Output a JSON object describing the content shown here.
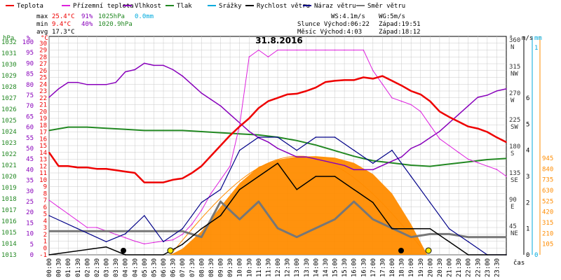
{
  "chart_data": {
    "type": "line",
    "title": "31.8.2016",
    "colors": {
      "temperature": "#ee0000",
      "dew_point": "#dd22dd",
      "humidity": "#8800bb",
      "pressure": "#228822",
      "precip": "#00aadd",
      "wind_speed": "#000000",
      "wind_gust": "#000088",
      "wind_dir": "#777777",
      "solar": "#ff8c00",
      "grid": "#c8c8c8"
    },
    "legend": [
      {
        "key": "temperature",
        "label": "Teplota"
      },
      {
        "key": "dew_point",
        "label": "Přízemní teplota"
      },
      {
        "key": "humidity",
        "label": "Vlhkost"
      },
      {
        "key": "pressure",
        "label": "Tlak"
      },
      {
        "key": "precip",
        "label": "Srážky"
      },
      {
        "key": "wind_speed",
        "label": "Rychlost větru"
      },
      {
        "key": "wind_gust",
        "label": "Náraz větru"
      },
      {
        "key": "wind_dir",
        "label": "Směr větru"
      }
    ],
    "stats": {
      "max_label": "max",
      "max_temp": "25.4°C",
      "max_hum": "91%",
      "max_press": "1025hPa",
      "max_precip": "0.0mm",
      "min_label": "min",
      "min_temp": "9.4°C",
      "min_hum": "40%",
      "min_press": "1020.9hPa",
      "avg_label": "avg",
      "avg_temp": "17.3°C"
    },
    "wind_info": {
      "ws": "WS:4.1m/s",
      "wg": "WG:5m/s"
    },
    "sun_info": {
      "sunrise": "Slunce Východ:06:22",
      "sunset": "Západ:19:51"
    },
    "moon_info": {
      "rise": "Měsíc  Východ:4:03",
      "set": "Západ:18:12"
    },
    "axis_units": {
      "hpa": "hPa",
      "percent": "%",
      "celsius": "°C",
      "degree": "°",
      "ms": "m/s",
      "mm": "mm"
    },
    "axes": {
      "hpa": {
        "ticks": [
          1013,
          1014,
          1015,
          1016,
          1017,
          1018,
          1019,
          1020,
          1021,
          1022,
          1023,
          1024,
          1025,
          1026,
          1027,
          1028,
          1029,
          1030,
          1031,
          1032
        ]
      },
      "percent": {
        "ticks": [
          0,
          5,
          10,
          15,
          20,
          25,
          30,
          35,
          40,
          45,
          50,
          55,
          60,
          65,
          70,
          75,
          80,
          85,
          90,
          95,
          100
        ]
      },
      "celsius": {
        "ticks": [
          -1,
          0,
          1,
          2,
          3,
          4,
          5,
          6,
          7,
          8,
          9,
          10,
          11,
          12,
          13,
          14,
          15,
          16,
          17,
          18,
          19,
          20,
          21,
          22,
          23,
          24,
          25,
          26,
          27,
          28,
          29,
          30
        ]
      },
      "direction": {
        "ticks": [
          {
            "deg": "45",
            "lab": "NE"
          },
          {
            "deg": "90",
            "lab": "E"
          },
          {
            "deg": "135",
            "lab": "SE"
          },
          {
            "deg": "180",
            "lab": "S"
          },
          {
            "deg": "225",
            "lab": "SW"
          },
          {
            "deg": "270",
            "lab": "W"
          },
          {
            "deg": "315",
            "lab": "NW"
          },
          {
            "deg": "360",
            "lab": "N"
          }
        ]
      },
      "ms": {
        "ticks": [
          0,
          1,
          2,
          3,
          4,
          5,
          6
        ]
      },
      "mm": {
        "ticks": [
          0,
          1
        ]
      },
      "solar": {
        "ticks": [
          105,
          210,
          315,
          420,
          525,
          630,
          735,
          840,
          945
        ]
      },
      "x_unit": "čas",
      "x_ticks": [
        "00:00",
        "00:30",
        "01:00",
        "01:30",
        "02:00",
        "02:30",
        "03:00",
        "03:30",
        "04:00",
        "04:30",
        "05:00",
        "05:30",
        "06:00",
        "06:30",
        "07:00",
        "07:30",
        "08:00",
        "08:30",
        "09:00",
        "09:30",
        "10:00",
        "10:30",
        "11:00",
        "11:30",
        "12:00",
        "12:30",
        "13:00",
        "13:30",
        "14:00",
        "14:30",
        "15:00",
        "15:30",
        "16:00",
        "16:30",
        "17:00",
        "17:30",
        "18:00",
        "18:30",
        "19:00",
        "19:30",
        "20:00",
        "20:30",
        "21:00",
        "21:30",
        "22:00",
        "22:30",
        "23:00",
        "23:30"
      ]
    },
    "series": [
      {
        "key": "temperature",
        "unit": "°C",
        "x": [
          0,
          0.5,
          1,
          1.5,
          2,
          2.5,
          3,
          3.5,
          4,
          4.5,
          5,
          5.5,
          6,
          6.5,
          7,
          7.5,
          8,
          8.5,
          9,
          9.5,
          10,
          10.5,
          11,
          11.5,
          12,
          12.5,
          13,
          13.5,
          14,
          14.5,
          15,
          15.5,
          16,
          16.5,
          17,
          17.5,
          18,
          18.5,
          19,
          19.5,
          20,
          20.5,
          21,
          21.5,
          22,
          22.5,
          23,
          23.5,
          24
        ],
        "y": [
          14,
          12,
          12,
          11.8,
          11.8,
          11.6,
          11.6,
          11.4,
          11.2,
          11,
          9.6,
          9.6,
          9.6,
          10,
          10.2,
          11,
          12,
          13.5,
          15,
          16.5,
          17.8,
          19,
          20.5,
          21.5,
          22,
          22.5,
          22.6,
          23,
          23.5,
          24.3,
          24.5,
          24.6,
          24.6,
          25,
          24.8,
          25.2,
          24.5,
          23.8,
          23,
          22.5,
          21.5,
          20,
          19.2,
          18.5,
          17.8,
          17.5,
          17,
          16.2,
          15.5
        ]
      },
      {
        "key": "dew_point",
        "unit": "°C",
        "x": [
          0,
          0.5,
          1,
          1.5,
          2,
          2.5,
          3,
          3.5,
          4,
          4.5,
          5,
          5.5,
          6,
          6.5,
          7,
          7.5,
          8,
          8.5,
          9,
          9.5,
          10,
          10.5,
          11,
          11.5,
          12,
          12.5,
          13,
          13.5,
          14,
          14.5,
          15,
          15.5,
          16,
          16.5,
          17,
          17.5,
          18,
          18.5,
          19,
          19.5,
          20,
          20.5,
          21,
          21.5,
          22,
          22.5,
          23,
          23.5,
          24
        ],
        "y": [
          7,
          6,
          5,
          4,
          3,
          3,
          2.5,
          2,
          1.5,
          1,
          0.6,
          0.8,
          1,
          1.2,
          2,
          3.5,
          5.5,
          8,
          10,
          12,
          18,
          28,
          29,
          28,
          29,
          29,
          29,
          29,
          29,
          29,
          29,
          29,
          29,
          29,
          26,
          24,
          22,
          21.5,
          21,
          20,
          18,
          16,
          15,
          14,
          13,
          12.5,
          12,
          11.5,
          10.5
        ]
      },
      {
        "key": "humidity",
        "unit": "%",
        "x": [
          0,
          0.5,
          1,
          1.5,
          2,
          2.5,
          3,
          3.5,
          4,
          4.5,
          5,
          5.5,
          6,
          6.5,
          7,
          7.5,
          8,
          8.5,
          9,
          9.5,
          10,
          10.5,
          11,
          11.5,
          12,
          12.5,
          13,
          13.5,
          14,
          14.5,
          15,
          15.5,
          16,
          16.5,
          17,
          17.5,
          18,
          18.5,
          19,
          19.5,
          20,
          20.5,
          21,
          21.5,
          22,
          22.5,
          23,
          23.5,
          24
        ],
        "y": [
          74,
          78,
          81,
          81,
          80,
          80,
          80,
          81,
          86,
          87,
          90,
          89,
          89,
          87,
          84,
          80,
          76,
          73,
          70,
          66,
          62,
          58,
          55,
          53,
          50,
          48,
          46,
          46,
          45,
          44,
          43,
          42,
          40,
          40,
          40,
          42,
          44,
          46,
          50,
          52,
          55,
          58,
          62,
          66,
          70,
          74,
          75,
          77,
          78
        ]
      },
      {
        "key": "pressure",
        "unit": "hPa",
        "x": [
          0,
          1,
          2,
          3,
          4,
          5,
          6,
          7,
          8,
          9,
          10,
          11,
          12,
          13,
          14,
          15,
          16,
          17,
          18,
          19,
          20,
          21,
          22,
          23,
          24
        ],
        "y": [
          1024.1,
          1024.4,
          1024.4,
          1024.3,
          1024.2,
          1024.1,
          1024.1,
          1024.1,
          1024.0,
          1023.9,
          1023.8,
          1023.7,
          1023.5,
          1023.2,
          1022.8,
          1022.3,
          1021.8,
          1021.4,
          1021.2,
          1021.0,
          1020.9,
          1021.1,
          1021.3,
          1021.5,
          1021.6
        ]
      },
      {
        "key": "solar",
        "unit": "W/m2",
        "x": [
          6.37,
          7,
          8,
          9,
          10,
          11,
          12,
          13,
          14,
          15,
          16,
          17,
          18,
          19,
          19.85
        ],
        "y": [
          0,
          60,
          230,
          470,
          700,
          860,
          930,
          960,
          965,
          950,
          900,
          790,
          600,
          300,
          0
        ]
      },
      {
        "key": "wind_speed",
        "unit": "m/s",
        "x": [
          0,
          3,
          4,
          5,
          6,
          7,
          8,
          9,
          10,
          11,
          12,
          13,
          14,
          15,
          16,
          17,
          18,
          19,
          20,
          21,
          22,
          23,
          24
        ],
        "y": [
          0,
          0.3,
          0,
          0,
          0,
          0.4,
          1,
          1.5,
          2.5,
          3,
          3.5,
          2.5,
          3,
          3,
          2.5,
          2,
          1,
          1,
          1,
          0.5,
          0,
          0,
          0
        ]
      },
      {
        "key": "wind_gust",
        "unit": "m/s",
        "x": [
          0,
          3,
          4,
          5,
          6,
          7,
          8,
          9,
          10,
          11,
          12,
          13,
          14,
          15,
          16,
          17,
          18,
          19,
          20,
          21,
          22,
          23,
          24
        ],
        "y": [
          1.5,
          0.5,
          0.8,
          1.5,
          0.5,
          1,
          2,
          2.5,
          4,
          4.5,
          4.5,
          4,
          4.5,
          4.5,
          4,
          3.5,
          4,
          3,
          2,
          1,
          0.5,
          0,
          0
        ]
      },
      {
        "key": "wind_dir",
        "unit": "°",
        "x": [
          0,
          3,
          6,
          7,
          8,
          9,
          10,
          11,
          12,
          13,
          14,
          15,
          16,
          17,
          18,
          19,
          20,
          21,
          22,
          23,
          24
        ],
        "y": [
          40,
          40,
          40,
          40,
          30,
          90,
          60,
          90,
          45,
          30,
          45,
          60,
          90,
          60,
          45,
          30,
          35,
          35,
          30,
          30,
          30
        ]
      }
    ],
    "ylim_celsius": [
      -1,
      31
    ]
  }
}
